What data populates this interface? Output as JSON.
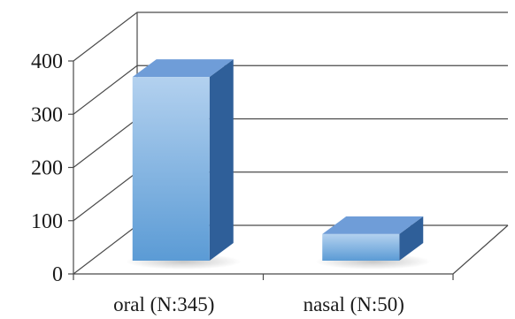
{
  "chart_data": {
    "type": "bar",
    "three_d": true,
    "categories": [
      "oral (N:345)",
      "nasal (N:50)"
    ],
    "series": [
      {
        "values": [
          345,
          50
        ]
      }
    ],
    "ylim": [
      0,
      400
    ],
    "yticks": [
      0,
      100,
      200,
      300,
      400
    ],
    "ytick_labels": [
      "0",
      "100",
      "200",
      "300",
      "400"
    ],
    "grid": true,
    "legend": "none",
    "colors": {
      "bar_front_top": "#b3d1ef",
      "bar_front_bottom": "#5b9bd5",
      "bar_side": "#2f5f99",
      "bar_top": "#6f9dd8",
      "gridline": "#4a4a4a",
      "wall": "#ffffff"
    }
  }
}
